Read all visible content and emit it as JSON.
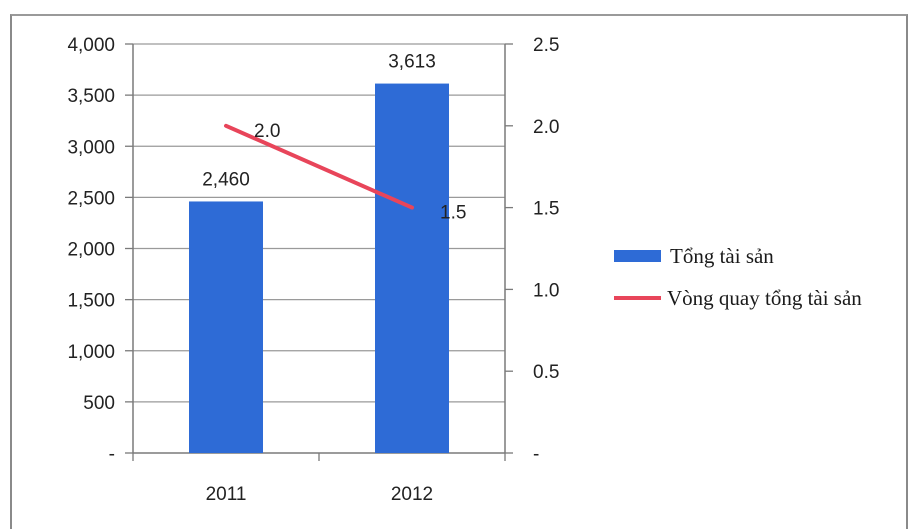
{
  "chart_data": {
    "type": "bar",
    "title": "",
    "categories": [
      "2011",
      "2012"
    ],
    "series": [
      {
        "name": "Tổng tài sản",
        "type": "bar",
        "axis": "left",
        "values": [
          2460,
          3613
        ],
        "labels": [
          "2,460",
          "3,613"
        ],
        "color": "#2e6bd6"
      },
      {
        "name": "Vòng quay tổng tài sản",
        "type": "line",
        "axis": "right",
        "values": [
          2.0,
          1.5
        ],
        "labels": [
          "2.0",
          "1.5"
        ],
        "color": "#e8455a"
      }
    ],
    "y_left": {
      "range": [
        0,
        4000
      ],
      "ticks": [
        0,
        500,
        1000,
        1500,
        2000,
        2500,
        3000,
        3500,
        4000
      ],
      "tick_labels": [
        "-",
        "500",
        "1,000",
        "1,500",
        "2,000",
        "2,500",
        "3,000",
        "3,500",
        "4,000"
      ]
    },
    "y_right": {
      "range": [
        0,
        2.5
      ],
      "ticks": [
        0,
        0.5,
        1.0,
        1.5,
        2.0,
        2.5
      ],
      "tick_labels": [
        "-",
        "0.5",
        "1.0",
        "1.5",
        "2.0",
        "2.5"
      ]
    },
    "grid": true,
    "legend": "right"
  }
}
